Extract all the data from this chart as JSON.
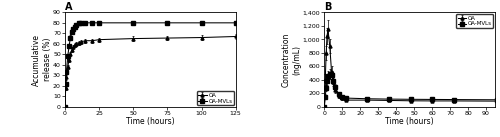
{
  "A": {
    "title": "A",
    "xlabel": "Time (hours)",
    "ylabel": "Accumulative\nrelease (%)",
    "xlim": [
      0,
      125
    ],
    "ylim": [
      0,
      90
    ],
    "xticks": [
      0,
      25,
      50,
      75,
      100,
      125
    ],
    "yticks": [
      0,
      10,
      20,
      30,
      40,
      50,
      60,
      70,
      80,
      90
    ],
    "OA_x": [
      0,
      0.5,
      1,
      2,
      3,
      4,
      5,
      6,
      7,
      8,
      10,
      12,
      15,
      20,
      25,
      50,
      75,
      100,
      125
    ],
    "OA_y": [
      0,
      18,
      28,
      38,
      45,
      50,
      54,
      57,
      59,
      60,
      61,
      62,
      63,
      63,
      64,
      65,
      65.5,
      66,
      67
    ],
    "OA_err": [
      0,
      2,
      2,
      2,
      2,
      2,
      2,
      2,
      2,
      2,
      2,
      2,
      2,
      2,
      2,
      2,
      2,
      2,
      2
    ],
    "MVL_x": [
      0,
      0.5,
      1,
      2,
      3,
      4,
      5,
      6,
      7,
      8,
      10,
      12,
      15,
      20,
      25,
      50,
      75,
      100,
      125
    ],
    "MVL_y": [
      0,
      22,
      33,
      48,
      58,
      66,
      71,
      74,
      76,
      78,
      80,
      80,
      80,
      80,
      80,
      80,
      80,
      80,
      80
    ],
    "MVL_err": [
      0,
      2,
      2,
      2,
      2,
      2,
      2,
      2,
      2,
      2,
      2,
      2,
      2,
      2,
      2,
      2,
      2,
      2,
      2
    ],
    "legend_labels": [
      "OA",
      "OA-MVLs"
    ],
    "OA_marker": "^",
    "MVL_marker": "s"
  },
  "B": {
    "title": "B",
    "xlabel": "Time (hours)",
    "ylabel": "Concentration\n(ng/mL)",
    "xlim": [
      0,
      95
    ],
    "ylim": [
      0,
      1400
    ],
    "xticks": [
      0,
      10,
      20,
      30,
      40,
      50,
      60,
      70,
      80,
      90
    ],
    "yticks": [
      0,
      200,
      400,
      600,
      800,
      1000,
      1200,
      1400
    ],
    "ytick_labels": [
      "0",
      "200",
      "400",
      "600",
      "800",
      "1,000",
      "1,200",
      "1,400"
    ],
    "OA_x": [
      0,
      0.5,
      1,
      1.5,
      2,
      3,
      4,
      5,
      6,
      8,
      10,
      12,
      24,
      36,
      48,
      60,
      72,
      96
    ],
    "OA_y": [
      0,
      400,
      800,
      1050,
      1150,
      900,
      520,
      370,
      250,
      160,
      130,
      100,
      100,
      95,
      90,
      88,
      88,
      85
    ],
    "OA_err": [
      0,
      80,
      100,
      120,
      130,
      100,
      80,
      60,
      50,
      35,
      25,
      20,
      20,
      15,
      15,
      12,
      12,
      12
    ],
    "MVL_x": [
      0,
      0.5,
      1,
      1.5,
      2,
      3,
      4,
      5,
      6,
      8,
      10,
      12,
      24,
      36,
      48,
      60,
      72,
      96
    ],
    "MVL_y": [
      0,
      150,
      280,
      390,
      460,
      490,
      470,
      390,
      290,
      185,
      150,
      130,
      120,
      115,
      112,
      110,
      108,
      105
    ],
    "MVL_err": [
      0,
      40,
      50,
      60,
      70,
      70,
      60,
      55,
      45,
      30,
      25,
      22,
      20,
      18,
      18,
      15,
      15,
      15
    ],
    "legend_labels": [
      "OA",
      "OA-MVLs"
    ],
    "OA_marker": "^",
    "MVL_marker": "s"
  }
}
